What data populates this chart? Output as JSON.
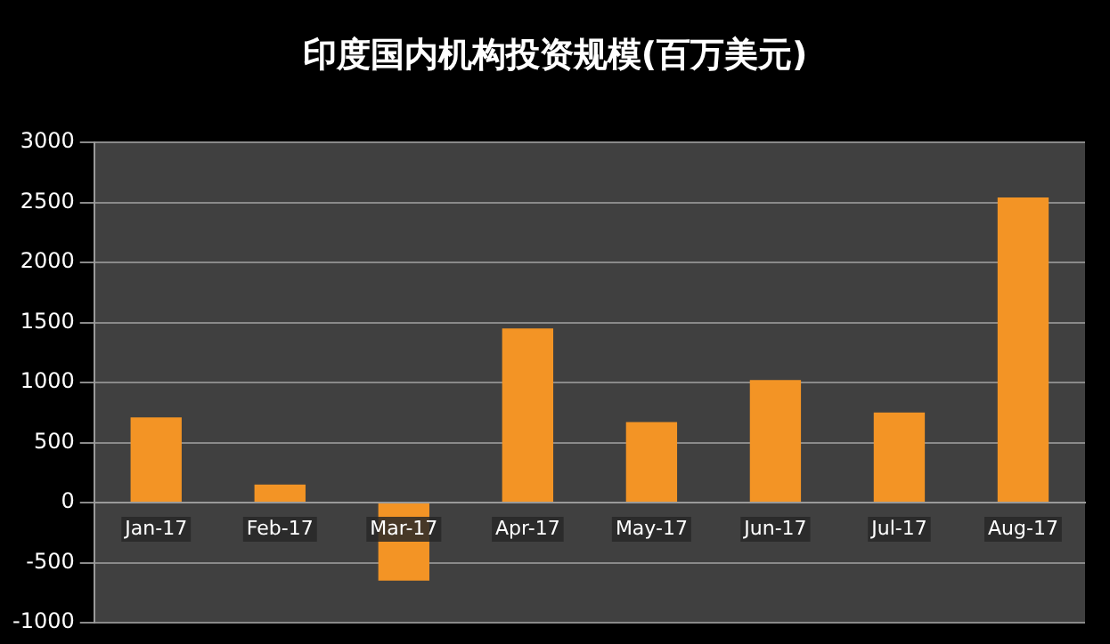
{
  "chart_data": {
    "type": "bar",
    "title": "印度国内机构投资规模(百万美元)",
    "categories": [
      "Jan-17",
      "Feb-17",
      "Mar-17",
      "Apr-17",
      "May-17",
      "Jun-17",
      "Jul-17",
      "Aug-17"
    ],
    "values": [
      710,
      150,
      -650,
      1450,
      670,
      1020,
      750,
      2540
    ],
    "color": "#f39425",
    "ylim": [
      -1000,
      3000
    ],
    "yticks": [
      -1000,
      -500,
      0,
      500,
      1000,
      1500,
      2000,
      2500,
      3000
    ],
    "grid": "y",
    "legend": false
  }
}
